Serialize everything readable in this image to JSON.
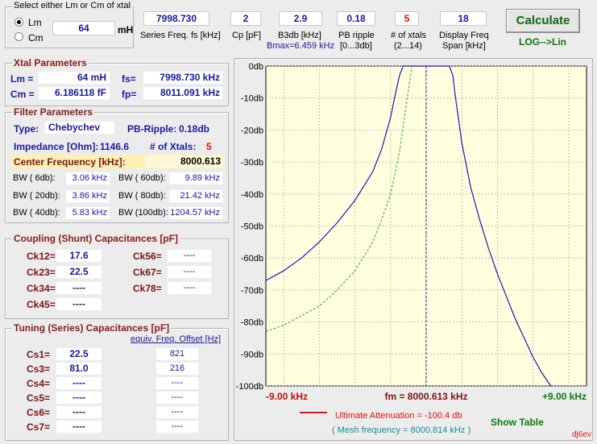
{
  "selector": {
    "title": "Select either Lm or Cm of xtal",
    "opt_lm": "Lm",
    "opt_cm": "Cm",
    "value": "64",
    "unit": "mH"
  },
  "inputs": [
    {
      "value": "7998.730",
      "label": "Series Freq. fs [kHz]",
      "label2": ""
    },
    {
      "value": "2",
      "label": "Cp [pF]",
      "label2": ""
    },
    {
      "value": "2.9",
      "label": "B3db [kHz]",
      "label2": "Bmax=6.459 kHz"
    },
    {
      "value": "0.18",
      "label": "PB ripple",
      "label2": "[0...3db]"
    },
    {
      "value": "5",
      "label": "# of xtals",
      "label2": "(2...14)"
    },
    {
      "value": "18",
      "label": "Display Freq",
      "label2": "Span [kHz]"
    }
  ],
  "calculate_label": "Calculate",
  "log_lin_label": "LOG-->Lin",
  "xtal": {
    "title": "Xtal Parameters",
    "lm_label": "Lm =",
    "lm_value": "64 mH",
    "fs_label": "fs=",
    "fs_value": "7998.730 kHz",
    "cm_label": "Cm =",
    "cm_value": "6.186118  fF",
    "fp_label": "fp=",
    "fp_value": "8011.091 kHz"
  },
  "filter": {
    "title": "Filter Parameters",
    "type_label": "Type:",
    "type_value": "Chebychev",
    "ripple_label": "PB-Ripple:",
    "ripple_value": "0.18db",
    "imp_label": "Impedance [Ohm]:",
    "imp_value": "1146.6",
    "nx_label": "# of Xtals:",
    "nx_value": "5",
    "cf_label": "Center Frequency [kHz]:",
    "cf_value": "8000.613",
    "bw": [
      {
        "l1": "BW (  6db):",
        "v1": "3.06 kHz",
        "l2": "BW ( 60db):",
        "v2": "9.89 kHz"
      },
      {
        "l1": "BW ( 20db):",
        "v1": "3.86 kHz",
        "l2": "BW ( 80db):",
        "v2": "21.42 kHz"
      },
      {
        "l1": "BW ( 40db):",
        "v1": "5.83 kHz",
        "l2": "BW (100db):",
        "v2": "1204.57 kHz"
      }
    ]
  },
  "coupling": {
    "title": "Coupling (Shunt) Capacitances [pF]",
    "rows": [
      {
        "l1": "Ck12=",
        "v1": "17.6",
        "l2": "Ck56=",
        "v2": "----"
      },
      {
        "l1": "Ck23=",
        "v1": "22.5",
        "l2": "Ck67=",
        "v2": "----"
      },
      {
        "l1": "Ck34=",
        "v1": "----",
        "l2": "Ck78=",
        "v2": "----"
      },
      {
        "l1": "Ck45=",
        "v1": "----",
        "l2": "",
        "v2": ""
      }
    ]
  },
  "tuning": {
    "title": "Tuning (Series) Capacitances [pF]",
    "offset_label": "equiv. Freq. Offset [Hz]",
    "rows": [
      {
        "l": "Cs1=",
        "v": "22.5",
        "o": "821"
      },
      {
        "l": "Cs3=",
        "v": "81.0",
        "o": "216"
      },
      {
        "l": "Cs4=",
        "v": "----",
        "o": "----"
      },
      {
        "l": "Cs5=",
        "v": "----",
        "o": "----"
      },
      {
        "l": "Cs6=",
        "v": "----",
        "o": "----"
      },
      {
        "l": "Cs7=",
        "v": "----",
        "o": "----"
      }
    ]
  },
  "chart_data": {
    "type": "line",
    "x_unit": "kHz offset",
    "xlim": [
      -9,
      9
    ],
    "ylim": [
      -100,
      0
    ],
    "y_ticks": [
      "0db",
      "-10db",
      "-20db",
      "-30db",
      "-40db",
      "-50db",
      "-60db",
      "-70db",
      "-80db",
      "-90db",
      "-100db"
    ],
    "x_left": "-9.00 kHz",
    "x_center": "fm = 8000.613 kHz",
    "x_right": "+9.00 kHz",
    "grid": true,
    "colors": {
      "response": "#1a1aa8",
      "group": "#22aa22",
      "center": "#1a1aa8",
      "background": "#ffffe0"
    },
    "series": [
      {
        "x": [
          -9,
          -8,
          -7,
          -6,
          -5,
          -4,
          -3,
          -2.5,
          -2,
          -1.7,
          -1.5,
          -1.3,
          1.3,
          1.5,
          1.6,
          1.8,
          2,
          2.5,
          3,
          3.5,
          4,
          4.5,
          5,
          5.5,
          6,
          6.5,
          7
        ],
        "y": [
          -67,
          -64,
          -60,
          -55,
          -49,
          -42,
          -33,
          -26,
          -16,
          -8,
          -3,
          0,
          0,
          -3,
          -8,
          -16,
          -24,
          -38,
          -48,
          -57,
          -65,
          -72,
          -79,
          -85,
          -91,
          -96,
          -100
        ]
      },
      {
        "x": [
          -9,
          -8,
          -7,
          -6,
          -5,
          -4,
          -3,
          -2.5,
          -2,
          -1.5,
          -1.2,
          -0.8
        ],
        "y": [
          -83,
          -81,
          -78,
          -75,
          -70,
          -64,
          -55,
          -48,
          -40,
          -27,
          -15,
          0
        ]
      }
    ]
  },
  "legend": {
    "attenuation": "Ultimate Attenuation =  -100.4 db",
    "mesh": "( Mesh frequency = 8000.814 kHz )",
    "show_table": "Show Table",
    "credit": "dj6ev"
  }
}
